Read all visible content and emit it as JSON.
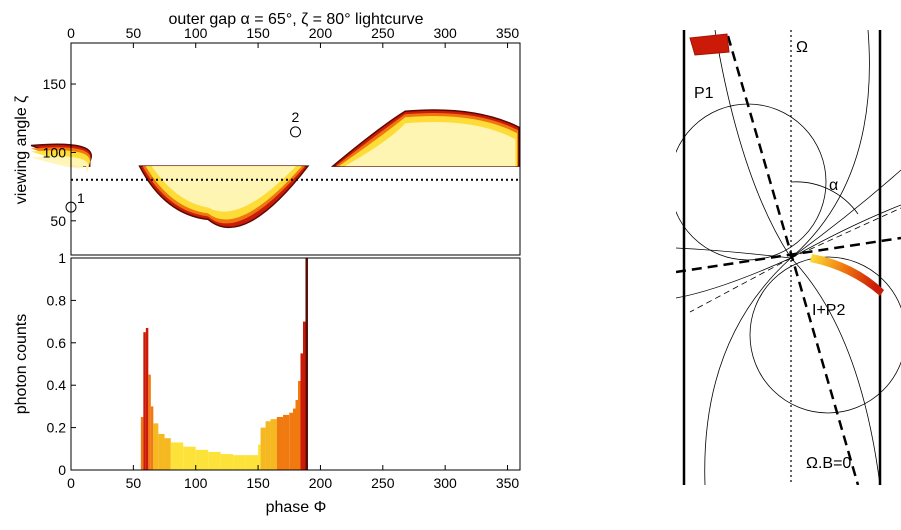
{
  "chart_data": [
    {
      "type": "heatmap",
      "title": "outer gap α = 65°, ζ = 80° lightcurve",
      "xlabel": "",
      "ylabel": "viewing angle ζ",
      "xlim": [
        0,
        360
      ],
      "ylim": [
        25,
        180
      ],
      "xticks": [
        0,
        50,
        100,
        150,
        200,
        250,
        300,
        350
      ],
      "yticks": [
        50,
        100,
        150
      ],
      "x_axis_position": "top",
      "zeta_line": 80,
      "markers": [
        {
          "label": "1",
          "x": 0,
          "y": 60
        },
        {
          "label": "2",
          "x": 180,
          "y": 115
        }
      ],
      "emission_regions": [
        {
          "name": "",
          "phi_start": 55,
          "phi_end": 190,
          "zeta_top": 90,
          "zeta_bottom": 51,
          "peak_phi": 110
        },
        {
          "name": "",
          "phi_start": 210,
          "phi_end": 365,
          "zeta_top": 133,
          "zeta_bottom": 90,
          "peak_phi": 300
        },
        {
          "name": "",
          "phi_start": 0,
          "phi_end": 15,
          "zeta_top": 108,
          "zeta_bottom": 90,
          "peak_phi": 0
        }
      ]
    },
    {
      "type": "bar",
      "title": "",
      "xlabel": "phase Φ",
      "ylabel": "photon counts",
      "xlim": [
        0,
        360
      ],
      "ylim": [
        0,
        1
      ],
      "xticks": [
        0,
        50,
        100,
        150,
        200,
        250,
        300,
        350
      ],
      "yticks": [
        0,
        0.2,
        0.4,
        0.6,
        0.8,
        1
      ],
      "ytick_labels": [
        "0",
        "0.2",
        "0.4",
        "0.6",
        "0.8",
        "1"
      ],
      "bin_width": 2,
      "x": [
        56,
        58,
        60,
        62,
        64,
        66,
        70,
        75,
        80,
        90,
        100,
        110,
        120,
        130,
        140,
        150,
        152,
        156,
        160,
        165,
        170,
        175,
        178,
        180,
        182,
        184,
        186,
        188
      ],
      "values": [
        0.25,
        0.65,
        0.67,
        0.45,
        0.3,
        0.22,
        0.17,
        0.15,
        0.13,
        0.11,
        0.095,
        0.085,
        0.075,
        0.07,
        0.07,
        0.12,
        0.2,
        0.23,
        0.24,
        0.25,
        0.26,
        0.27,
        0.29,
        0.33,
        0.42,
        0.55,
        0.7,
        1.0
      ]
    }
  ],
  "diagram": {
    "labels": {
      "omega": "Ω",
      "alpha": "α",
      "p1": "P1",
      "ip2": "I+P2",
      "omega_b": "Ω.B=0"
    }
  },
  "colors": {
    "dark": "#5a0a05",
    "red": "#cc1a08",
    "orange": "#f07a10",
    "yellow": "#fde23a",
    "pale": "#fff6b8",
    "axis": "#000000"
  }
}
